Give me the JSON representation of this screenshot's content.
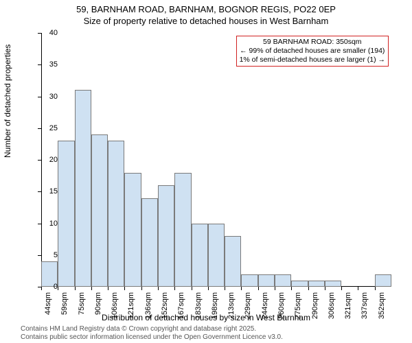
{
  "title_line1": "59, BARNHAM ROAD, BARNHAM, BOGNOR REGIS, PO22 0EP",
  "title_line2": "Size of property relative to detached houses in West Barnham",
  "y_axis_label": "Number of detached properties",
  "x_axis_label": "Distribution of detached houses by size in West Barnham",
  "chart": {
    "type": "histogram",
    "bar_fill": "#cfe1f2",
    "bar_border": "#7a7a7a",
    "annotation_border": "#d02020",
    "background": "#ffffff",
    "axis_color": "#000000",
    "ylim": [
      0,
      40
    ],
    "y_ticks": [
      0,
      5,
      10,
      15,
      20,
      25,
      30,
      35,
      40
    ],
    "x_labels": [
      "44sqm",
      "59sqm",
      "75sqm",
      "90sqm",
      "106sqm",
      "121sqm",
      "136sqm",
      "152sqm",
      "167sqm",
      "183sqm",
      "198sqm",
      "213sqm",
      "229sqm",
      "244sqm",
      "260sqm",
      "275sqm",
      "290sqm",
      "306sqm",
      "321sqm",
      "337sqm",
      "352sqm"
    ],
    "values": [
      4,
      23,
      31,
      24,
      23,
      18,
      14,
      16,
      18,
      10,
      10,
      8,
      2,
      2,
      2,
      1,
      1,
      1,
      0,
      0,
      2
    ]
  },
  "annotation": {
    "line1": "59 BARNHAM ROAD: 350sqm",
    "line2": "← 99% of detached houses are smaller (194)",
    "line3": "1% of semi-detached houses are larger (1) →"
  },
  "footer": {
    "line1": "Contains HM Land Registry data © Crown copyright and database right 2025.",
    "line2": "Contains public sector information licensed under the Open Government Licence v3.0."
  }
}
